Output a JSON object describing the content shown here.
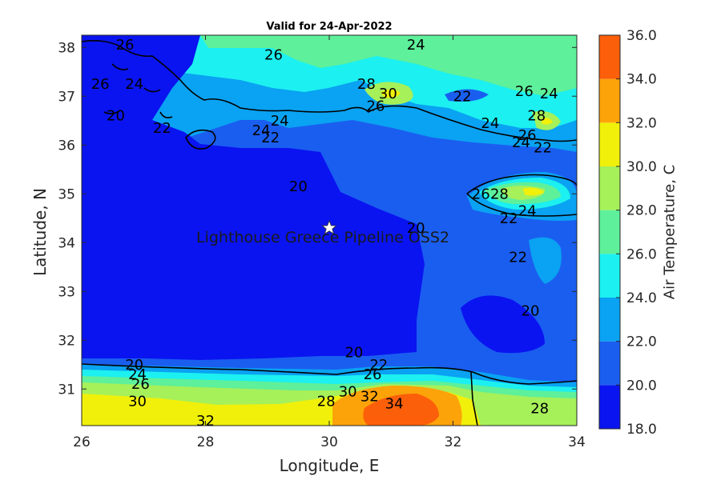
{
  "map": {
    "title": "Valid for 24-Apr-2022",
    "xlabel": "Longitude, E",
    "ylabel": "Latitude, N",
    "lon_range": [
      26,
      34
    ],
    "lat_range": [
      30.25,
      38.25
    ],
    "x_ticks": [
      "26",
      "28",
      "30",
      "32",
      "34"
    ],
    "y_ticks": [
      "31",
      "32",
      "33",
      "34",
      "35",
      "36",
      "37",
      "38"
    ],
    "site": {
      "name": "Lighthouse Greece Pipeline OSS2",
      "lon": 30.0,
      "lat": 34.3,
      "marker": "star-icon"
    },
    "contour_labels": [
      {
        "text": "26",
        "lon": 26.7,
        "lat": 38.05
      },
      {
        "text": "26",
        "lon": 29.1,
        "lat": 37.85
      },
      {
        "text": "26",
        "lon": 26.3,
        "lat": 37.25
      },
      {
        "text": "24",
        "lon": 26.85,
        "lat": 37.25
      },
      {
        "text": "20",
        "lon": 26.55,
        "lat": 36.6
      },
      {
        "text": "22",
        "lon": 27.3,
        "lat": 36.35
      },
      {
        "text": "24",
        "lon": 28.9,
        "lat": 36.3
      },
      {
        "text": "24",
        "lon": 29.2,
        "lat": 36.5
      },
      {
        "text": "22",
        "lon": 29.05,
        "lat": 36.15
      },
      {
        "text": "28",
        "lon": 30.6,
        "lat": 37.25
      },
      {
        "text": "30",
        "lon": 30.95,
        "lat": 37.05
      },
      {
        "text": "26",
        "lon": 30.75,
        "lat": 36.8
      },
      {
        "text": "24",
        "lon": 31.4,
        "lat": 38.05
      },
      {
        "text": "22",
        "lon": 32.15,
        "lat": 37.0
      },
      {
        "text": "24",
        "lon": 32.6,
        "lat": 36.45
      },
      {
        "text": "26",
        "lon": 33.15,
        "lat": 37.1
      },
      {
        "text": "24",
        "lon": 33.55,
        "lat": 37.05
      },
      {
        "text": "28",
        "lon": 33.35,
        "lat": 36.6
      },
      {
        "text": "26",
        "lon": 33.2,
        "lat": 36.2
      },
      {
        "text": "24",
        "lon": 33.1,
        "lat": 36.05
      },
      {
        "text": "22",
        "lon": 33.45,
        "lat": 35.95
      },
      {
        "text": "20",
        "lon": 29.5,
        "lat": 35.15
      },
      {
        "text": "20",
        "lon": 31.4,
        "lat": 34.3
      },
      {
        "text": "26",
        "lon": 32.45,
        "lat": 35.0
      },
      {
        "text": "28",
        "lon": 32.75,
        "lat": 35.0
      },
      {
        "text": "24",
        "lon": 33.2,
        "lat": 34.65
      },
      {
        "text": "22",
        "lon": 32.9,
        "lat": 34.5
      },
      {
        "text": "22",
        "lon": 33.05,
        "lat": 33.7
      },
      {
        "text": "20",
        "lon": 33.25,
        "lat": 32.6
      },
      {
        "text": "20",
        "lon": 30.4,
        "lat": 31.75
      },
      {
        "text": "20",
        "lon": 26.85,
        "lat": 31.5
      },
      {
        "text": "24",
        "lon": 26.9,
        "lat": 31.3
      },
      {
        "text": "26",
        "lon": 26.95,
        "lat": 31.1
      },
      {
        "text": "30",
        "lon": 26.9,
        "lat": 30.75
      },
      {
        "text": "32",
        "lon": 28.0,
        "lat": 30.35
      },
      {
        "text": "22",
        "lon": 30.8,
        "lat": 31.5
      },
      {
        "text": "26",
        "lon": 30.7,
        "lat": 31.3
      },
      {
        "text": "28",
        "lon": 29.95,
        "lat": 30.75
      },
      {
        "text": "30",
        "lon": 30.3,
        "lat": 30.95
      },
      {
        "text": "32",
        "lon": 30.65,
        "lat": 30.85
      },
      {
        "text": "34",
        "lon": 31.05,
        "lat": 30.7
      },
      {
        "text": "28",
        "lon": 33.4,
        "lat": 30.6
      }
    ]
  },
  "colorbar": {
    "label": "Air Temperature, C",
    "tick_labels": [
      "36.0",
      "34.0",
      "32.0",
      "30.0",
      "28.0",
      "26.0",
      "24.0",
      "22.0",
      "20.0",
      "18.0"
    ],
    "levels": [
      {
        "min": 18,
        "max": 20,
        "color": "#0a14f0"
      },
      {
        "min": 20,
        "max": 22,
        "color": "#1a5ef0"
      },
      {
        "min": 22,
        "max": 24,
        "color": "#0aa2f2"
      },
      {
        "min": 24,
        "max": 26,
        "color": "#1cf0f0"
      },
      {
        "min": 26,
        "max": 28,
        "color": "#5ef09a"
      },
      {
        "min": 28,
        "max": 30,
        "color": "#a6f05a"
      },
      {
        "min": 30,
        "max": 32,
        "color": "#f0f00a"
      },
      {
        "min": 32,
        "max": 34,
        "color": "#fca30a"
      },
      {
        "min": 34,
        "max": 36,
        "color": "#fc5f0a"
      }
    ]
  }
}
